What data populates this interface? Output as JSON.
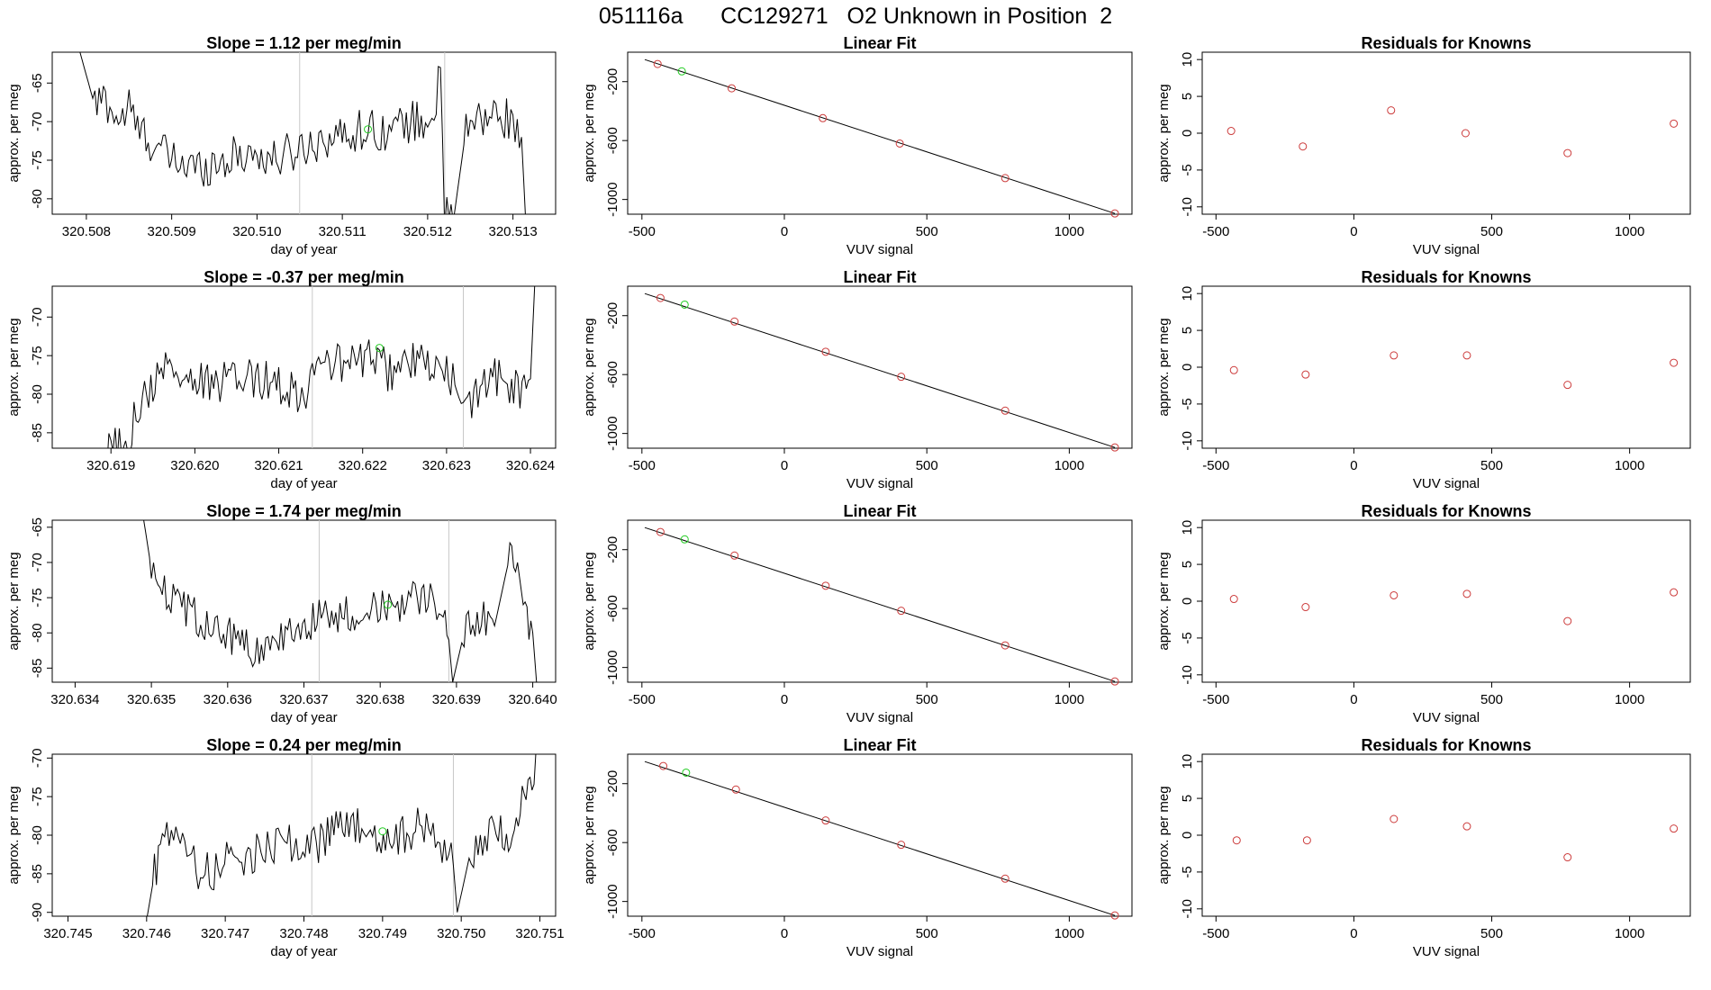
{
  "main_title": "051116a      CC129271   O2 Unknown in Position  2",
  "colors": {
    "line": "#000000",
    "known": "#cc3b3b",
    "unknown": "#22cc22",
    "marker": "#c8c8c8"
  },
  "chart_data": [
    {
      "type": "line",
      "title": "Slope =  1.12  per meg/min",
      "xlabel": "day of year",
      "ylabel": "approx. per meg",
      "xlim": [
        320.5076,
        320.5135
      ],
      "ylim": [
        -82,
        -61
      ],
      "grid": false,
      "xticks": [
        "320.508",
        "320.509",
        "320.510",
        "320.511",
        "320.512",
        "320.513"
      ],
      "yticks": [
        "-65",
        "-70",
        "-75",
        "-80"
      ],
      "vlines": [
        320.5105,
        320.5122
      ],
      "unknown_point": {
        "x": 320.5113,
        "y": -71
      },
      "anchors": [
        [
          320.5079,
          -60
        ],
        [
          320.5081,
          -68
        ],
        [
          320.5082,
          -67
        ],
        [
          320.5084,
          -70
        ],
        [
          320.5085,
          -68
        ],
        [
          320.5086,
          -71
        ],
        [
          320.5088,
          -73
        ],
        [
          320.509,
          -75
        ],
        [
          320.5093,
          -76
        ],
        [
          320.5096,
          -75
        ],
        [
          320.5099,
          -74
        ],
        [
          320.5102,
          -75
        ],
        [
          320.5104,
          -74
        ],
        [
          320.5106,
          -73
        ],
        [
          320.5108,
          -72
        ],
        [
          320.511,
          -72
        ],
        [
          320.5112,
          -71
        ],
        [
          320.5114,
          -71
        ],
        [
          320.5116,
          -71
        ],
        [
          320.5118,
          -70
        ],
        [
          320.512,
          -70
        ],
        [
          320.5121,
          -68
        ],
        [
          320.51215,
          -63
        ],
        [
          320.5122,
          -82
        ],
        [
          320.5123,
          -83
        ],
        [
          320.51245,
          -71
        ],
        [
          320.5126,
          -70
        ],
        [
          320.5128,
          -69
        ],
        [
          320.513,
          -70
        ],
        [
          320.5131,
          -72
        ],
        [
          320.51315,
          -83
        ]
      ]
    },
    {
      "type": "scatter",
      "title": "Linear Fit",
      "xlabel": "VUV signal",
      "ylabel": "approx. per meg",
      "xlim": [
        -550,
        1220
      ],
      "ylim": [
        -1100,
        0
      ],
      "xticks": [
        -500,
        0,
        500,
        1000
      ],
      "yticks": [
        -200,
        -600,
        -1000
      ],
      "fit": {
        "x": [
          -490,
          1160
        ],
        "y": [
          -50,
          -1095
        ]
      },
      "known_points": [
        [
          -445,
          -80
        ],
        [
          -185,
          -245
        ],
        [
          135,
          -448
        ],
        [
          405,
          -620
        ],
        [
          775,
          -855
        ],
        [
          1160,
          -1095
        ]
      ],
      "unknown_point": [
        -360,
        -130
      ]
    },
    {
      "type": "scatter",
      "title": "Residuals for Knowns",
      "xlabel": "VUV signal",
      "ylabel": "approx. per meg",
      "xlim": [
        -550,
        1220
      ],
      "ylim": [
        -11,
        11
      ],
      "xticks": [
        -500,
        0,
        500,
        1000
      ],
      "yticks": [
        10,
        5,
        0,
        -5,
        -10
      ],
      "points": [
        [
          -445,
          0.3
        ],
        [
          -185,
          -1.8
        ],
        [
          135,
          3.1
        ],
        [
          405,
          0
        ],
        [
          775,
          -2.7
        ],
        [
          1160,
          1.3
        ]
      ]
    },
    {
      "type": "line",
      "title": "Slope =  -0.37  per meg/min",
      "xlabel": "day of year",
      "ylabel": "approx. per meg",
      "xlim": [
        320.6183,
        320.6243
      ],
      "ylim": [
        -87,
        -66
      ],
      "grid": false,
      "xticks": [
        "320.619",
        "320.620",
        "320.621",
        "320.622",
        "320.623",
        "320.624"
      ],
      "yticks": [
        "-70",
        "-75",
        "-80",
        "-85"
      ],
      "vlines": [
        320.6214,
        320.6232
      ],
      "unknown_point": {
        "x": 320.6222,
        "y": -74
      },
      "anchors": [
        [
          320.6189,
          -88
        ],
        [
          320.6192,
          -86
        ],
        [
          320.6193,
          -82
        ],
        [
          320.6195,
          -79
        ],
        [
          320.6196,
          -76
        ],
        [
          320.6199,
          -78
        ],
        [
          320.6202,
          -79
        ],
        [
          320.6205,
          -78
        ],
        [
          320.6208,
          -78
        ],
        [
          320.6211,
          -79
        ],
        [
          320.6213,
          -80
        ],
        [
          320.6215,
          -76
        ],
        [
          320.6217,
          -76
        ],
        [
          320.6219,
          -76
        ],
        [
          320.6221,
          -75
        ],
        [
          320.6223,
          -77
        ],
        [
          320.6225,
          -76
        ],
        [
          320.6227,
          -76
        ],
        [
          320.6229,
          -77
        ],
        [
          320.6231,
          -78
        ],
        [
          320.62315,
          -82
        ],
        [
          320.6233,
          -82
        ],
        [
          320.6234,
          -78
        ],
        [
          320.6236,
          -78
        ],
        [
          320.6238,
          -79
        ],
        [
          320.6239,
          -80
        ],
        [
          320.624,
          -78
        ],
        [
          320.62405,
          -66
        ]
      ]
    },
    {
      "type": "scatter",
      "title": "Linear Fit",
      "xlabel": "VUV signal",
      "ylabel": "approx. per meg",
      "xlim": [
        -550,
        1220
      ],
      "ylim": [
        -1100,
        0
      ],
      "xticks": [
        -500,
        0,
        500,
        1000
      ],
      "yticks": [
        -200,
        -600,
        -1000
      ],
      "fit": {
        "x": [
          -490,
          1160
        ],
        "y": [
          -50,
          -1095
        ]
      },
      "known_points": [
        [
          -435,
          -80
        ],
        [
          -175,
          -240
        ],
        [
          145,
          -445
        ],
        [
          410,
          -615
        ],
        [
          775,
          -845
        ],
        [
          1160,
          -1095
        ]
      ],
      "unknown_point": [
        -350,
        -125
      ]
    },
    {
      "type": "scatter",
      "title": "Residuals for Knowns",
      "xlabel": "VUV signal",
      "ylabel": "approx. per meg",
      "xlim": [
        -550,
        1220
      ],
      "ylim": [
        -11,
        11
      ],
      "xticks": [
        -500,
        0,
        500,
        1000
      ],
      "yticks": [
        10,
        5,
        0,
        -5,
        -10
      ],
      "points": [
        [
          -435,
          -0.4
        ],
        [
          -175,
          -1.0
        ],
        [
          145,
          1.6
        ],
        [
          410,
          1.6
        ],
        [
          775,
          -2.4
        ],
        [
          1160,
          0.6
        ]
      ]
    },
    {
      "type": "line",
      "title": "Slope =  1.74  per meg/min",
      "xlabel": "day of year",
      "ylabel": "approx. per meg",
      "xlim": [
        320.6337,
        320.6403
      ],
      "ylim": [
        -87,
        -64
      ],
      "grid": false,
      "xticks": [
        "320.634",
        "320.635",
        "320.636",
        "320.637",
        "320.638",
        "320.639",
        "320.640"
      ],
      "yticks": [
        "-65",
        "-70",
        "-75",
        "-80",
        "-85"
      ],
      "vlines": [
        320.6372,
        320.6389
      ],
      "unknown_point": {
        "x": 320.6381,
        "y": -76
      },
      "anchors": [
        [
          320.6349,
          -64
        ],
        [
          320.635,
          -71
        ],
        [
          320.6352,
          -74
        ],
        [
          320.6354,
          -76
        ],
        [
          320.6357,
          -79
        ],
        [
          320.636,
          -80
        ],
        [
          320.6363,
          -82
        ],
        [
          320.6365,
          -83
        ],
        [
          320.6367,
          -80
        ],
        [
          320.6369,
          -79
        ],
        [
          320.6372,
          -78
        ],
        [
          320.6375,
          -77
        ],
        [
          320.6378,
          -77
        ],
        [
          320.638,
          -76
        ],
        [
          320.6382,
          -76
        ],
        [
          320.6384,
          -75
        ],
        [
          320.6386,
          -75
        ],
        [
          320.6388,
          -76
        ],
        [
          320.6389,
          -81
        ],
        [
          320.63895,
          -87
        ],
        [
          320.6391,
          -80
        ],
        [
          320.6393,
          -78
        ],
        [
          320.6395,
          -79
        ],
        [
          320.6397,
          -69
        ],
        [
          320.6398,
          -70
        ],
        [
          320.6399,
          -78
        ],
        [
          320.64,
          -80
        ],
        [
          320.64005,
          -87
        ]
      ]
    },
    {
      "type": "scatter",
      "title": "Linear Fit",
      "xlabel": "VUV signal",
      "ylabel": "approx. per meg",
      "xlim": [
        -550,
        1220
      ],
      "ylim": [
        -1100,
        0
      ],
      "xticks": [
        -500,
        0,
        500,
        1000
      ],
      "yticks": [
        -200,
        -600,
        -1000
      ],
      "fit": {
        "x": [
          -490,
          1160
        ],
        "y": [
          -50,
          -1095
        ]
      },
      "known_points": [
        [
          -435,
          -80
        ],
        [
          -175,
          -240
        ],
        [
          145,
          -445
        ],
        [
          410,
          -615
        ],
        [
          775,
          -850
        ],
        [
          1160,
          -1095
        ]
      ],
      "unknown_point": [
        -350,
        -130
      ]
    },
    {
      "type": "scatter",
      "title": "Residuals for Knowns",
      "xlabel": "VUV signal",
      "ylabel": "approx. per meg",
      "xlim": [
        -550,
        1220
      ],
      "ylim": [
        -11,
        11
      ],
      "xticks": [
        -500,
        0,
        500,
        1000
      ],
      "yticks": [
        10,
        5,
        0,
        -5,
        -10
      ],
      "points": [
        [
          -435,
          0.3
        ],
        [
          -175,
          -0.8
        ],
        [
          145,
          0.8
        ],
        [
          410,
          1.0
        ],
        [
          775,
          -2.7
        ],
        [
          1160,
          1.2
        ]
      ]
    },
    {
      "type": "line",
      "title": "Slope =  0.24  per meg/min",
      "xlabel": "day of year",
      "ylabel": "approx. per meg",
      "xlim": [
        320.7448,
        320.7512
      ],
      "ylim": [
        -90.5,
        -69.5
      ],
      "grid": false,
      "xticks": [
        "320.745",
        "320.746",
        "320.747",
        "320.748",
        "320.749",
        "320.750",
        "320.751"
      ],
      "yticks": [
        "-70",
        "-75",
        "-80",
        "-85",
        "-90"
      ],
      "vlines": [
        320.7481,
        320.7499
      ],
      "unknown_point": {
        "x": 320.749,
        "y": -79.5
      },
      "anchors": [
        [
          320.746,
          -91
        ],
        [
          320.7461,
          -85
        ],
        [
          320.7462,
          -80
        ],
        [
          320.7464,
          -81
        ],
        [
          320.7466,
          -84
        ],
        [
          320.7468,
          -85
        ],
        [
          320.7471,
          -83
        ],
        [
          320.7474,
          -82
        ],
        [
          320.7477,
          -81
        ],
        [
          320.7479,
          -81
        ],
        [
          320.7481,
          -82
        ],
        [
          320.7483,
          -80
        ],
        [
          320.7486,
          -79
        ],
        [
          320.7489,
          -80
        ],
        [
          320.7492,
          -80
        ],
        [
          320.7495,
          -79
        ],
        [
          320.7497,
          -80
        ],
        [
          320.7499,
          -84
        ],
        [
          320.74995,
          -90
        ],
        [
          320.7501,
          -83
        ],
        [
          320.7503,
          -80
        ],
        [
          320.7505,
          -80
        ],
        [
          320.7506,
          -82
        ],
        [
          320.7507,
          -77
        ],
        [
          320.7508,
          -75
        ],
        [
          320.7509,
          -73
        ],
        [
          320.75095,
          -69
        ]
      ]
    },
    {
      "type": "scatter",
      "title": "Linear Fit",
      "xlabel": "VUV signal",
      "ylabel": "approx. per meg",
      "xlim": [
        -550,
        1220
      ],
      "ylim": [
        -1100,
        0
      ],
      "xticks": [
        -500,
        0,
        500,
        1000
      ],
      "yticks": [
        -200,
        -600,
        -1000
      ],
      "fit": {
        "x": [
          -490,
          1160
        ],
        "y": [
          -50,
          -1095
        ]
      },
      "known_points": [
        [
          -425,
          -80
        ],
        [
          -170,
          -240
        ],
        [
          145,
          -450
        ],
        [
          410,
          -615
        ],
        [
          775,
          -845
        ],
        [
          1160,
          -1095
        ]
      ],
      "unknown_point": [
        -345,
        -125
      ]
    },
    {
      "type": "scatter",
      "title": "Residuals for Knowns",
      "xlabel": "VUV signal",
      "ylabel": "approx. per meg",
      "xlim": [
        -550,
        1220
      ],
      "ylim": [
        -11,
        11
      ],
      "xticks": [
        -500,
        0,
        500,
        1000
      ],
      "yticks": [
        10,
        5,
        0,
        -5,
        -10
      ],
      "points": [
        [
          -425,
          -0.7
        ],
        [
          -170,
          -0.7
        ],
        [
          145,
          2.2
        ],
        [
          410,
          1.2
        ],
        [
          775,
          -3.0
        ],
        [
          1160,
          0.9
        ]
      ]
    }
  ]
}
